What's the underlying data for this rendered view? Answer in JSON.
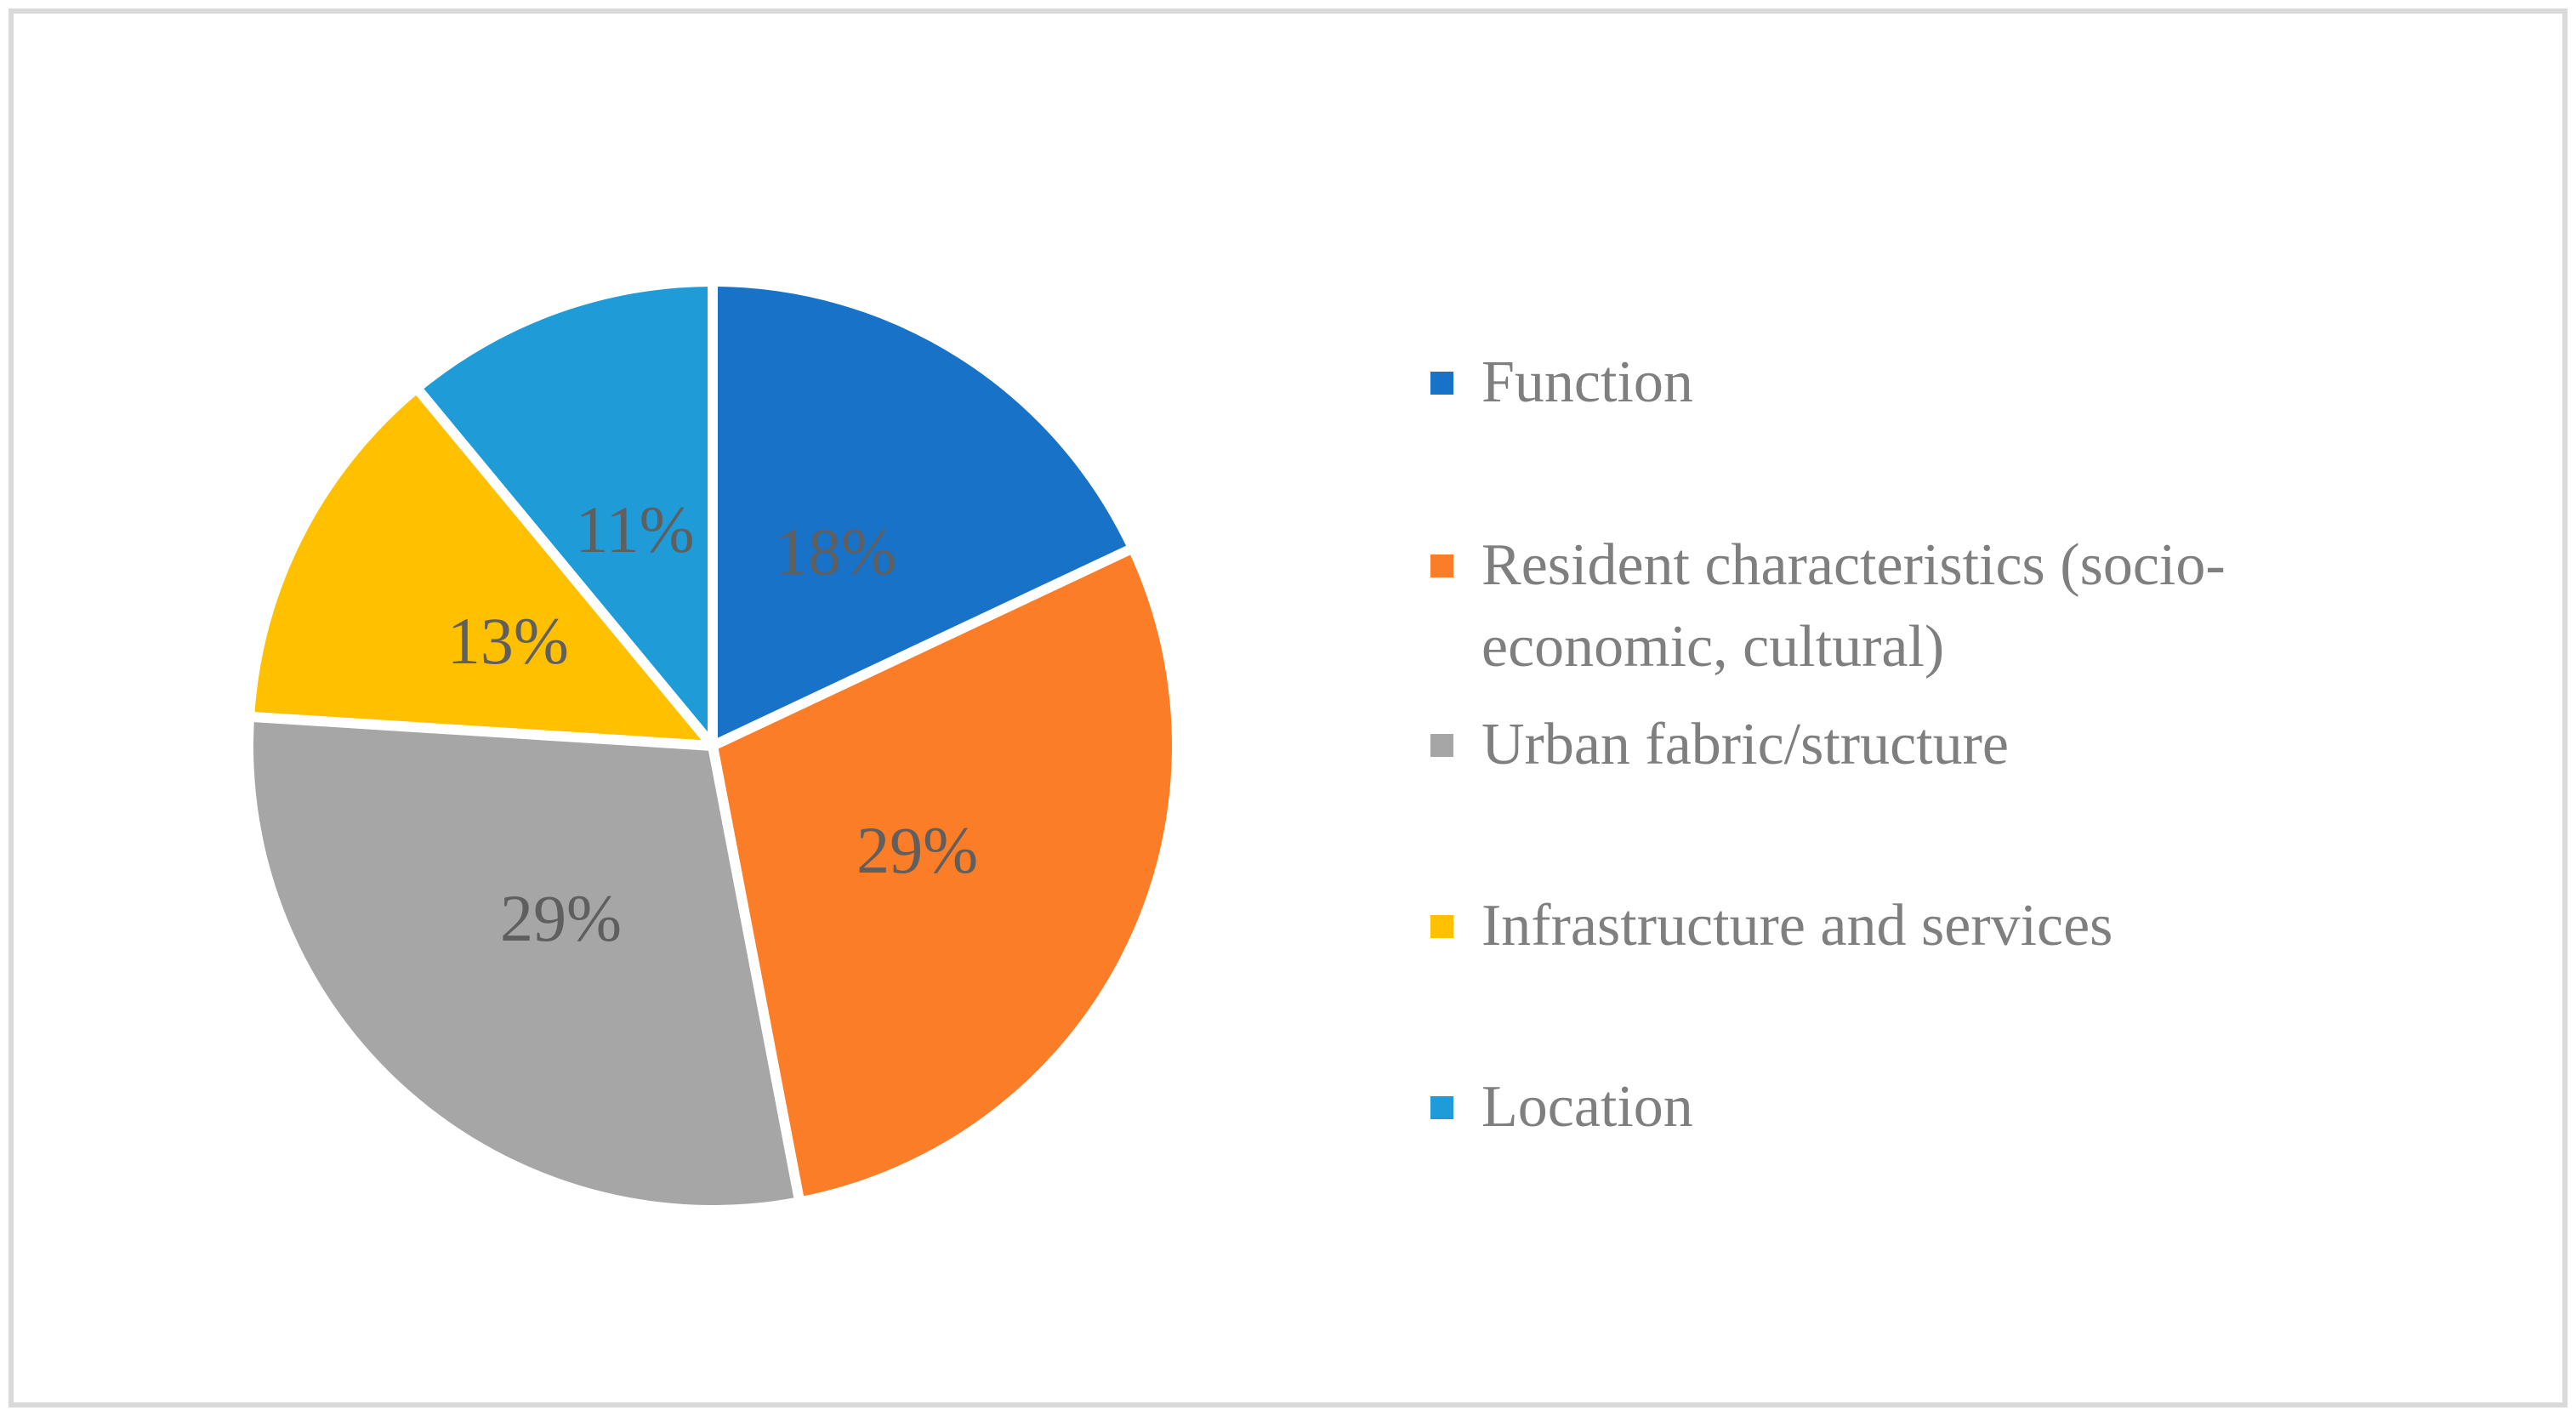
{
  "figure": {
    "background": "#FFFFFF",
    "border_color": "#D9D9D9"
  },
  "chart_data": {
    "type": "pie",
    "title": "",
    "start_angle_deg": 0,
    "direction": "clockwise",
    "legend_position": "right",
    "data_label_color": "#5F5F5F",
    "legend_text_color": "#7F7F7F",
    "gap_color": "#FFFFFF",
    "slices": [
      {
        "label": "Function",
        "value": 18,
        "pct_label": "18%",
        "color": "#1772C8"
      },
      {
        "label": "Resident characteristics (socio-\neconomic, cultural)",
        "value": 29,
        "pct_label": "29%",
        "color": "#FB7D27"
      },
      {
        "label": "Urban fabric/structure",
        "value": 29,
        "pct_label": "29%",
        "color": "#A6A6A6"
      },
      {
        "label": "Infrastructure and services",
        "value": 13,
        "pct_label": "13%",
        "color": "#FFC000"
      },
      {
        "label": "Location",
        "value": 11,
        "pct_label": "11%",
        "color": "#1F9CD8"
      }
    ]
  }
}
